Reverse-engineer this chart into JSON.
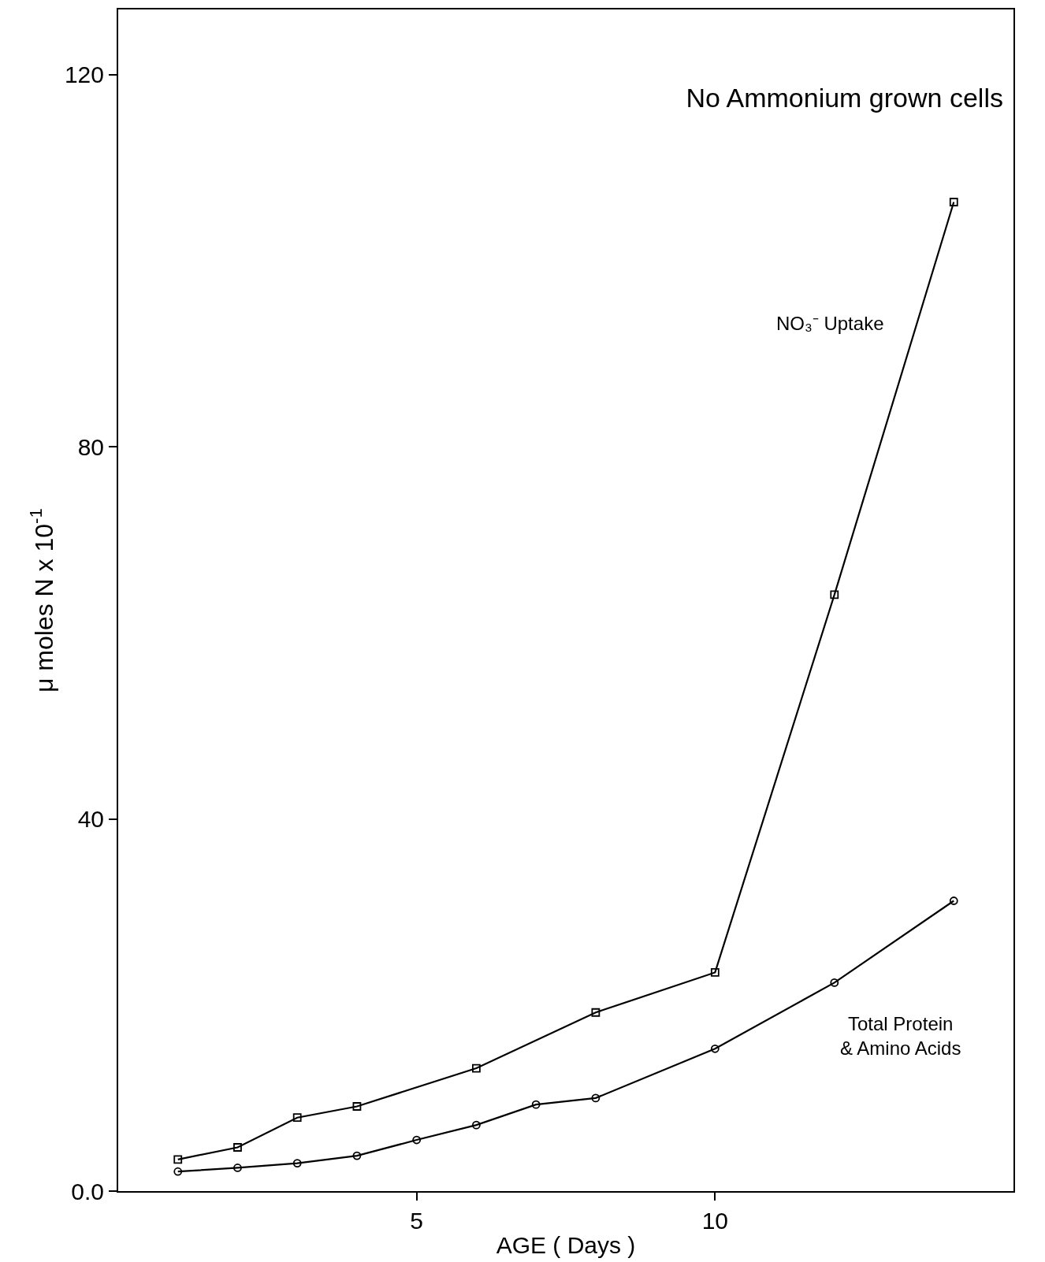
{
  "chart_data": {
    "type": "line",
    "title": "No Ammonium grown cells",
    "xlabel": "AGE ( Days )",
    "ylabel": "μ moles N x 10$^{-1}$",
    "xlim": [
      0,
      15
    ],
    "xticks": [
      5,
      10
    ],
    "ylim": [
      0,
      127
    ],
    "yticks": [
      {
        "value": 0,
        "label": "0.0"
      },
      40,
      80,
      120
    ],
    "legend": false,
    "line_style": "solid",
    "series": [
      {
        "name": "NO₃⁻ Uptake",
        "color": "#000000",
        "marker": "square",
        "x": [
          1,
          2,
          3,
          4,
          6,
          8,
          10,
          12,
          14
        ],
        "values": [
          3.4,
          4.7,
          7.9,
          9.1,
          13.2,
          19.2,
          23.5,
          64.1,
          106.3
        ]
      },
      {
        "name": "Total Protein & Amino Acids",
        "color": "#000000",
        "marker": "circle",
        "x": [
          1,
          2,
          3,
          4,
          5,
          6,
          7,
          8,
          10,
          12,
          14
        ],
        "values": [
          2.1,
          2.5,
          3.0,
          3.8,
          5.5,
          7.1,
          9.3,
          10.0,
          15.3,
          22.4,
          31.2
        ]
      }
    ]
  }
}
